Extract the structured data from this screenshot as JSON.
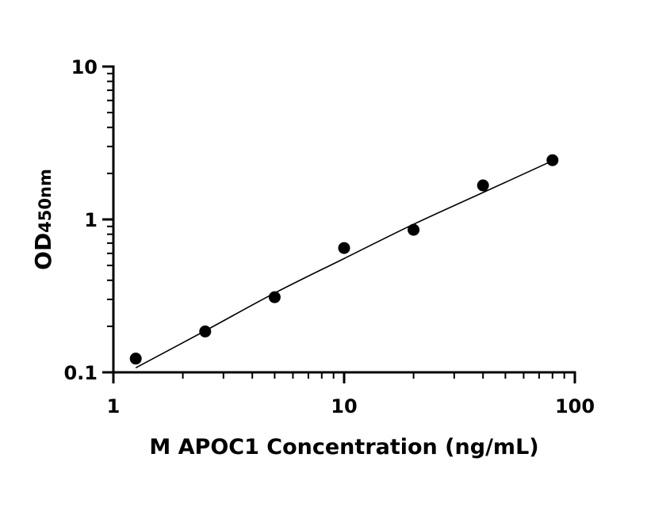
{
  "chart_data": {
    "type": "scatter",
    "xscale": "log",
    "yscale": "log",
    "xlim": [
      1,
      100
    ],
    "ylim": [
      0.1,
      10
    ],
    "xlabel": "M APOC1 Concentration (ng/mL)",
    "ylabel": "OD",
    "ylabel_subscript": "450nm",
    "x_ticks": [
      "1",
      "10",
      "100"
    ],
    "y_ticks": [
      "0.1",
      "1",
      "10"
    ],
    "grid": false,
    "legend": "none",
    "points": {
      "x": [
        1.25,
        2.5,
        5,
        10,
        20,
        40,
        80
      ],
      "y": [
        0.123,
        0.185,
        0.31,
        0.65,
        0.855,
        1.67,
        2.44
      ]
    },
    "fit_curve": {
      "x": [
        1.25,
        2.5,
        5,
        10,
        20,
        40,
        80
      ],
      "y": [
        0.107,
        0.187,
        0.33,
        0.555,
        0.93,
        1.5,
        2.42
      ]
    },
    "colors": {
      "points": "#000000",
      "curve": "#000000",
      "axes": "#000000"
    }
  }
}
